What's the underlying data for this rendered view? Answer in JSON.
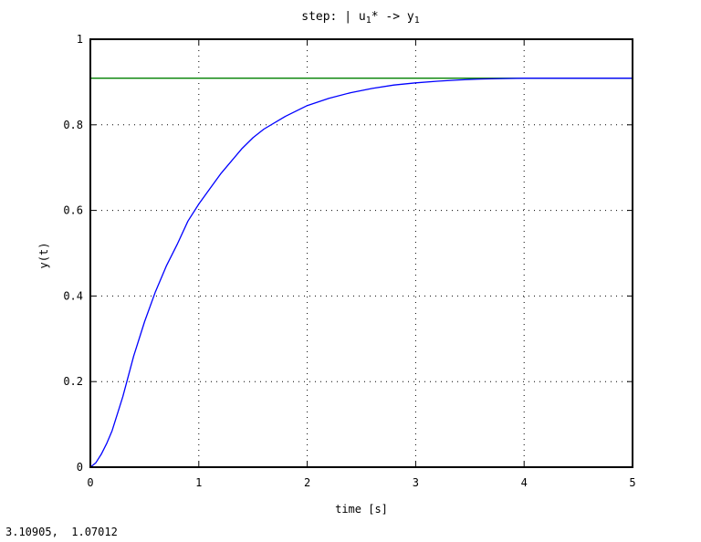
{
  "chart_data": {
    "type": "line",
    "title": "step: | u1* -> y1",
    "title_parts": {
      "prefix": "step: | u",
      "sub1": "1",
      "mid": "* -> y",
      "sub2": "1"
    },
    "xlabel": "time [s]",
    "ylabel": "y(t)",
    "xlim": [
      0,
      5
    ],
    "ylim": [
      0,
      1
    ],
    "xticks": [
      "0",
      "1",
      "2",
      "3",
      "4",
      "5"
    ],
    "yticks": [
      "0",
      "0.2",
      "0.4",
      "0.6",
      "0.8",
      "1"
    ],
    "grid": true,
    "series": [
      {
        "color": "#0000ff",
        "x": [
          0,
          0.05,
          0.1,
          0.15,
          0.2,
          0.3,
          0.4,
          0.5,
          0.6,
          0.7,
          0.8,
          0.9,
          1.0,
          1.1,
          1.2,
          1.3,
          1.4,
          1.5,
          1.6,
          1.8,
          2.0,
          2.2,
          2.4,
          2.6,
          2.8,
          3.0,
          3.2,
          3.4,
          3.6,
          3.8,
          4.0,
          4.2,
          4.5,
          4.8,
          5.0
        ],
        "y": [
          0,
          0.01,
          0.03,
          0.055,
          0.085,
          0.165,
          0.26,
          0.34,
          0.41,
          0.47,
          0.52,
          0.575,
          0.615,
          0.65,
          0.685,
          0.715,
          0.745,
          0.77,
          0.79,
          0.82,
          0.845,
          0.862,
          0.875,
          0.885,
          0.893,
          0.898,
          0.902,
          0.905,
          0.907,
          0.908,
          0.909,
          0.909,
          0.909,
          0.909,
          0.909
        ]
      },
      {
        "color": "#008000",
        "x": [
          0,
          5
        ],
        "y": [
          0.909,
          0.909
        ]
      }
    ]
  },
  "status": {
    "coords": "3.10905,  1.07012"
  }
}
